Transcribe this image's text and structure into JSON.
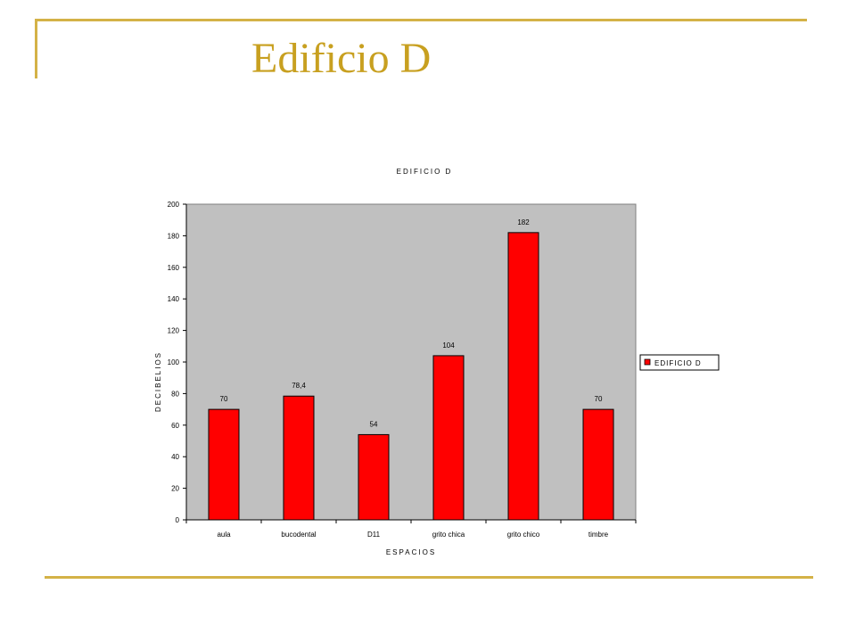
{
  "slide": {
    "title": "Edificio D"
  },
  "chart_data": {
    "type": "bar",
    "title": "EDIFICIO D",
    "xlabel": "ESPACIOS",
    "ylabel": "DECIBELIOS",
    "categories": [
      "aula",
      "bucodental",
      "D11",
      "grito chica",
      "grito chico",
      "timbre"
    ],
    "series": [
      {
        "name": "EDIFICIO D",
        "values": [
          70,
          78.4,
          54,
          104,
          182,
          70
        ],
        "color": "#ff0000"
      }
    ],
    "data_labels": [
      "70",
      "78,4",
      "54",
      "104",
      "182",
      "70"
    ],
    "yticks": [
      "0",
      "20",
      "40",
      "60",
      "80",
      "100",
      "120",
      "140",
      "160",
      "180",
      "200"
    ],
    "ylim": [
      0,
      200
    ],
    "plot_background": "#c0c0c0",
    "grid": false,
    "legend": "right"
  }
}
